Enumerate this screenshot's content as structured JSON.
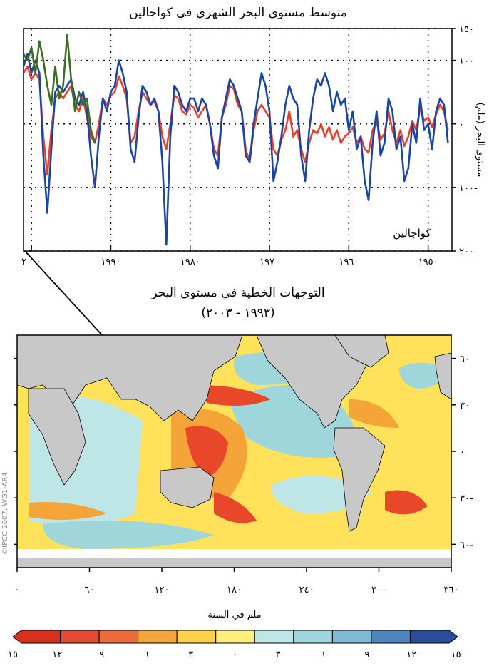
{
  "credit": "©IPCC 2007: WG1-AR4",
  "colors": {
    "red_series": "#e8402a",
    "blue_series": "#1a45a6",
    "green_series": "#3b6e22",
    "land": "#c8c8c8",
    "ocean_blue": "#9fd6dc",
    "yellow": "#ffe15a",
    "orange": "#f5a437",
    "deep_red": "#e8472a"
  },
  "chart_data": [
    {
      "type": "line",
      "title": "متوسط مستوى البحر الشهري في كواجالين",
      "ylabel": "مستوى البحر (ملم)",
      "annotation": "كواجالين",
      "x_ticks": [
        "٢٠٠٠",
        "١٩٩٠",
        "١٩٨٠",
        "١٩٧٠",
        "١٩٦٠",
        "١٩٥٠"
      ],
      "x_tick_values": [
        2000,
        1990,
        1980,
        1970,
        1960,
        1950
      ],
      "xlim": [
        2001,
        1947
      ],
      "y_ticks": [
        "١٥٠",
        "١٠٠",
        "٠",
        "١٠٠-",
        "٢٠٠-"
      ],
      "y_tick_values": [
        150,
        100,
        0,
        -100,
        -200
      ],
      "ylim": [
        -200,
        150
      ],
      "grid": true,
      "series": [
        {
          "name": "red",
          "color": "#e8402a",
          "points": [
            [
              1947.5,
              -10
            ],
            [
              1948,
              20
            ],
            [
              1948.5,
              30
            ],
            [
              1949,
              15
            ],
            [
              1949.5,
              -5
            ],
            [
              1950,
              10
            ],
            [
              1950.5,
              5
            ],
            [
              1951,
              25
            ],
            [
              1951.5,
              -10
            ],
            [
              1952,
              5
            ],
            [
              1952.5,
              -20
            ],
            [
              1953,
              -35
            ],
            [
              1953.5,
              -10
            ],
            [
              1954,
              -30
            ],
            [
              1954.5,
              -10
            ],
            [
              1955,
              20
            ],
            [
              1955.5,
              -15
            ],
            [
              1956,
              -25
            ],
            [
              1956.5,
              5
            ],
            [
              1957,
              -10
            ],
            [
              1957.5,
              -45
            ],
            [
              1958,
              -40
            ],
            [
              1958.5,
              -20
            ],
            [
              1959,
              -30
            ],
            [
              1959.5,
              -5
            ],
            [
              1960,
              -15
            ],
            [
              1960.5,
              -20
            ],
            [
              1961,
              -30
            ],
            [
              1961.5,
              -10
            ],
            [
              1962,
              -25
            ],
            [
              1962.5,
              -5
            ],
            [
              1963,
              -20
            ],
            [
              1963.5,
              0
            ],
            [
              1964,
              -15
            ],
            [
              1964.5,
              -10
            ],
            [
              1965,
              -30
            ],
            [
              1965.5,
              -60
            ],
            [
              1966,
              -40
            ],
            [
              1966.5,
              -10
            ],
            [
              1967,
              -20
            ],
            [
              1967.5,
              20
            ],
            [
              1968,
              -10
            ],
            [
              1968.5,
              -25
            ],
            [
              1969,
              -50
            ],
            [
              1969.5,
              -40
            ],
            [
              1970,
              10
            ],
            [
              1970.5,
              20
            ],
            [
              1971,
              30
            ],
            [
              1971.5,
              20
            ],
            [
              1972,
              -10
            ],
            [
              1972.5,
              -60
            ],
            [
              1973,
              -40
            ],
            [
              1973.5,
              20
            ],
            [
              1974,
              30
            ],
            [
              1974.5,
              55
            ],
            [
              1975,
              60
            ],
            [
              1975.5,
              30
            ],
            [
              1976,
              10
            ],
            [
              1976.5,
              -50
            ],
            [
              1977,
              -40
            ],
            [
              1977.5,
              0
            ],
            [
              1978,
              30
            ],
            [
              1978.5,
              20
            ],
            [
              1979,
              10
            ],
            [
              1979.5,
              25
            ],
            [
              1980,
              30
            ],
            [
              1980.5,
              15
            ],
            [
              1981,
              20
            ],
            [
              1981.5,
              40
            ],
            [
              1982,
              45
            ],
            [
              1982.5,
              0
            ],
            [
              1983,
              -40
            ],
            [
              1983.5,
              -20
            ],
            [
              1984,
              20
            ],
            [
              1984.5,
              35
            ],
            [
              1985,
              30
            ],
            [
              1985.5,
              40
            ],
            [
              1986,
              50
            ],
            [
              1986.5,
              20
            ],
            [
              1987,
              -20
            ],
            [
              1987.5,
              -30
            ],
            [
              1988,
              40
            ],
            [
              1988.5,
              60
            ],
            [
              1989,
              75
            ],
            [
              1989.5,
              50
            ],
            [
              1990,
              45
            ],
            [
              1990.5,
              30
            ],
            [
              1991,
              40
            ],
            [
              1991.5,
              0
            ],
            [
              1992,
              -30
            ],
            [
              1992.5,
              -20
            ],
            [
              1993,
              10
            ],
            [
              1993.5,
              40
            ],
            [
              1994,
              20
            ],
            [
              1994.5,
              30
            ],
            [
              1995,
              60
            ],
            [
              1995.5,
              50
            ],
            [
              1996,
              40
            ],
            [
              1996.5,
              50
            ],
            [
              1997,
              40
            ],
            [
              1997.5,
              -10
            ],
            [
              1998,
              -80
            ],
            [
              1998.5,
              -20
            ],
            [
              1999,
              70
            ],
            [
              1999.5,
              80
            ],
            [
              2000,
              70
            ],
            [
              2000.5,
              90
            ],
            [
              2001,
              80
            ]
          ]
        },
        {
          "name": "blue",
          "color": "#1a45a6",
          "points": [
            [
              1947.5,
              -30
            ],
            [
              1948,
              30
            ],
            [
              1948.5,
              40
            ],
            [
              1949,
              20
            ],
            [
              1949.5,
              -40
            ],
            [
              1950,
              0
            ],
            [
              1950.5,
              -10
            ],
            [
              1951,
              40
            ],
            [
              1951.5,
              -30
            ],
            [
              1952,
              0
            ],
            [
              1952.5,
              -70
            ],
            [
              1953,
              -90
            ],
            [
              1953.5,
              -20
            ],
            [
              1954,
              -40
            ],
            [
              1954.5,
              20
            ],
            [
              1955,
              40
            ],
            [
              1955.5,
              -30
            ],
            [
              1956,
              -50
            ],
            [
              1956.5,
              20
            ],
            [
              1957,
              -30
            ],
            [
              1957.5,
              -120
            ],
            [
              1958,
              -90
            ],
            [
              1958.5,
              -20
            ],
            [
              1959,
              -40
            ],
            [
              1959.5,
              20
            ],
            [
              1960,
              -10
            ],
            [
              1960.5,
              40
            ],
            [
              1961,
              30
            ],
            [
              1961.5,
              50
            ],
            [
              1962,
              20
            ],
            [
              1962.5,
              60
            ],
            [
              1963,
              80
            ],
            [
              1963.5,
              60
            ],
            [
              1964,
              70
            ],
            [
              1964.5,
              40
            ],
            [
              1965,
              -10
            ],
            [
              1965.5,
              -90
            ],
            [
              1966,
              -50
            ],
            [
              1966.5,
              30
            ],
            [
              1967,
              40
            ],
            [
              1967.5,
              60
            ],
            [
              1968,
              30
            ],
            [
              1968.5,
              -20
            ],
            [
              1969,
              -60
            ],
            [
              1969.5,
              -90
            ],
            [
              1970,
              20
            ],
            [
              1970.5,
              60
            ],
            [
              1971,
              80
            ],
            [
              1971.5,
              40
            ],
            [
              1972,
              0
            ],
            [
              1972.5,
              -60
            ],
            [
              1973,
              -50
            ],
            [
              1973.5,
              20
            ],
            [
              1974,
              40
            ],
            [
              1974.5,
              60
            ],
            [
              1975,
              70
            ],
            [
              1975.5,
              40
            ],
            [
              1976,
              10
            ],
            [
              1976.5,
              -70
            ],
            [
              1977,
              -50
            ],
            [
              1977.5,
              0
            ],
            [
              1978,
              30
            ],
            [
              1978.5,
              40
            ],
            [
              1979,
              20
            ],
            [
              1979.5,
              40
            ],
            [
              1980,
              40
            ],
            [
              1980.5,
              20
            ],
            [
              1981,
              30
            ],
            [
              1981.5,
              50
            ],
            [
              1982,
              60
            ],
            [
              1982.5,
              -20
            ],
            [
              1983,
              -190
            ],
            [
              1983.5,
              -60
            ],
            [
              1984,
              20
            ],
            [
              1984.5,
              40
            ],
            [
              1985,
              30
            ],
            [
              1985.5,
              50
            ],
            [
              1986,
              60
            ],
            [
              1986.5,
              10
            ],
            [
              1987,
              -60
            ],
            [
              1987.5,
              -40
            ],
            [
              1988,
              50
            ],
            [
              1988.5,
              80
            ],
            [
              1989,
              100
            ],
            [
              1989.5,
              60
            ],
            [
              1990,
              50
            ],
            [
              1990.5,
              20
            ],
            [
              1991,
              40
            ],
            [
              1991.5,
              -20
            ],
            [
              1992,
              -100
            ],
            [
              1992.5,
              -50
            ],
            [
              1993,
              20
            ],
            [
              1993.5,
              50
            ],
            [
              1994,
              30
            ],
            [
              1994.5,
              40
            ],
            [
              1995,
              70
            ],
            [
              1995.5,
              60
            ],
            [
              1996,
              50
            ],
            [
              1996.5,
              60
            ],
            [
              1997,
              50
            ],
            [
              1997.5,
              -40
            ],
            [
              1998,
              -140
            ],
            [
              1998.5,
              -50
            ],
            [
              1999,
              80
            ],
            [
              1999.5,
              100
            ],
            [
              2000,
              80
            ],
            [
              2000.5,
              110
            ],
            [
              2001,
              90
            ]
          ]
        },
        {
          "name": "green",
          "color": "#3b6e22",
          "points": [
            [
              1992,
              -30
            ],
            [
              1992.5,
              -10
            ],
            [
              1993,
              40
            ],
            [
              1993.5,
              30
            ],
            [
              1994,
              50
            ],
            [
              1994.5,
              20
            ],
            [
              1995,
              70
            ],
            [
              1995.5,
              140
            ],
            [
              1996,
              60
            ],
            [
              1996.5,
              40
            ],
            [
              1997,
              90
            ],
            [
              1997.5,
              30
            ],
            [
              1998,
              60
            ],
            [
              1998.5,
              100
            ],
            [
              1999,
              130
            ],
            [
              1999.5,
              80
            ],
            [
              2000,
              120
            ],
            [
              2000.5,
              100
            ],
            [
              2001,
              110
            ]
          ]
        }
      ]
    },
    {
      "type": "heatmap",
      "title": "التوجهات الخطية في مستوى البحر",
      "subtitle": "(١٩٩٣ - ٢٠٠٣)",
      "x_ticks": [
        "٠",
        "٦٠",
        "١٢٠",
        "١٨٠",
        "٢٤٠",
        "٣٠٠",
        "٣٦٠"
      ],
      "x_tick_values": [
        0,
        60,
        120,
        180,
        240,
        300,
        360
      ],
      "y_ticks": [
        "٦٠",
        "٣٠",
        "٠",
        "٣٠-",
        "٦٠-"
      ],
      "y_tick_values": [
        60,
        30,
        0,
        -30,
        -60
      ],
      "xlim": [
        0,
        360
      ],
      "ylim": [
        -75,
        75
      ],
      "colorbar": {
        "label": "ملم في السنة",
        "tick_labels": [
          "١٥",
          "١٢",
          "٩",
          "٦",
          "٣",
          "٠",
          "٣-",
          "٦-",
          "٩-",
          "١٢-",
          "١٥-"
        ],
        "tick_values": [
          15,
          12,
          9,
          6,
          3,
          0,
          -3,
          -6,
          -9,
          -12,
          -15
        ],
        "colors": [
          "#d7301f",
          "#e34a33",
          "#ef6b3a",
          "#f5a437",
          "#fcd24a",
          "#ffef7a",
          "#bfe6e6",
          "#9fd6dc",
          "#7fb9d4",
          "#4f84bf",
          "#2b4b9c"
        ]
      }
    }
  ]
}
